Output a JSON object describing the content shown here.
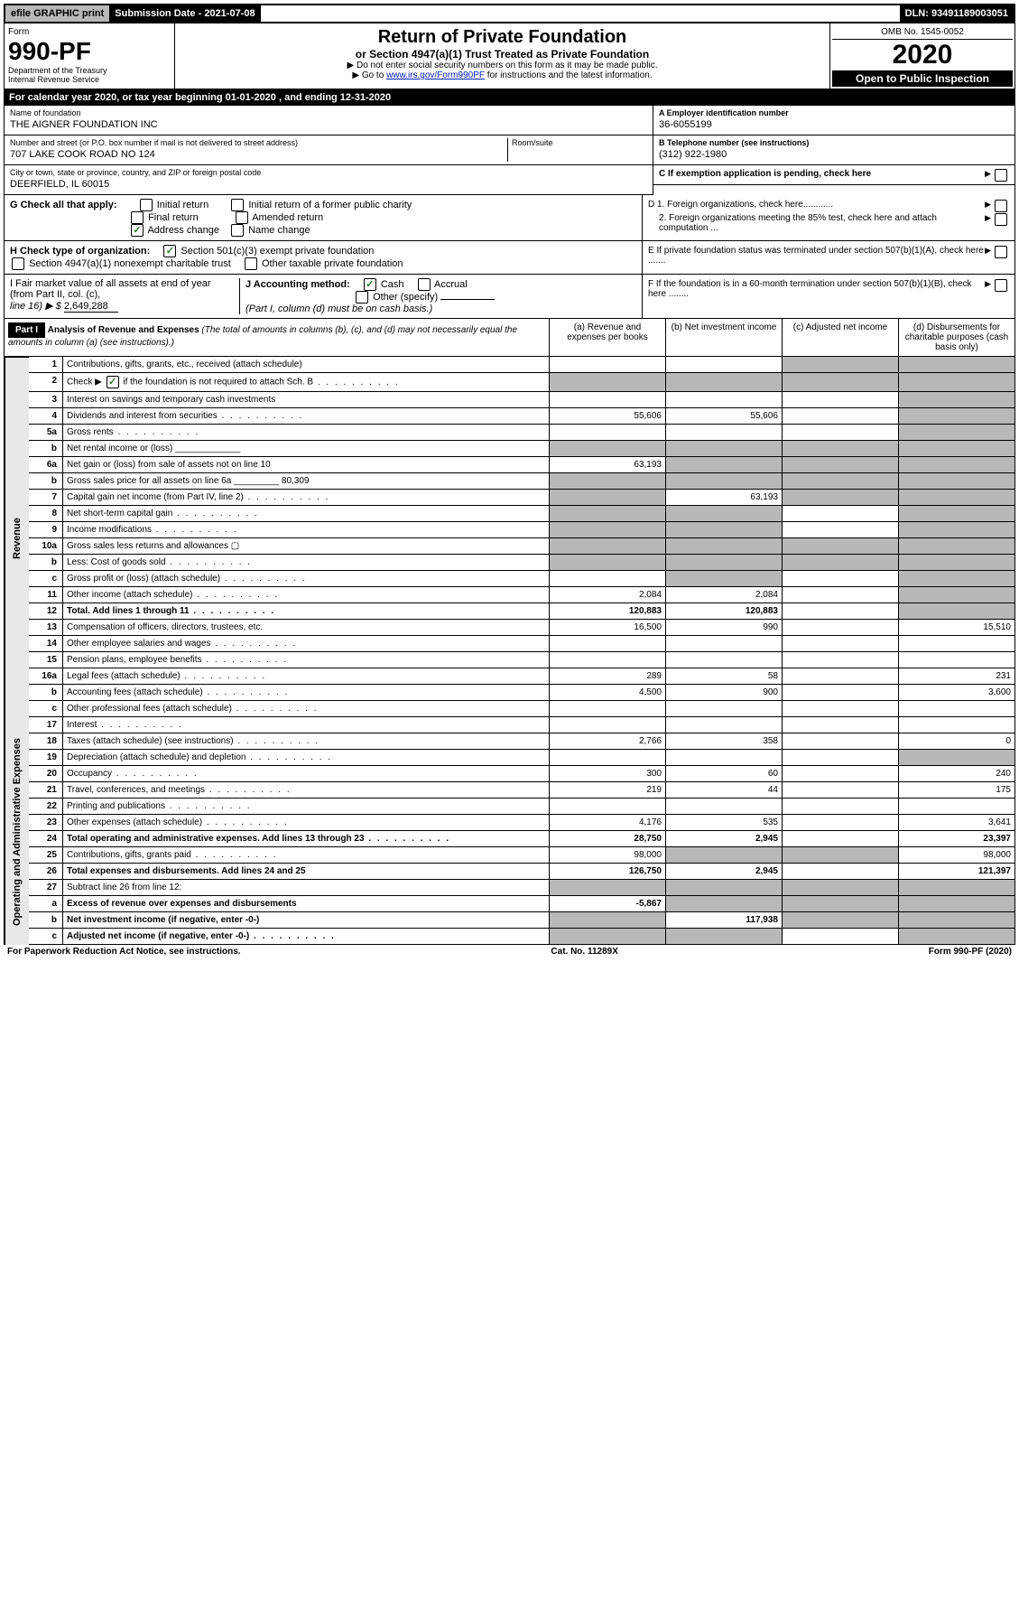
{
  "topbar": {
    "efile": "efile GRAPHIC print",
    "submission": "Submission Date - 2021-07-08",
    "dln": "DLN: 93491189003051"
  },
  "header": {
    "form_label": "Form",
    "form_number": "990-PF",
    "department": "Department of the Treasury",
    "irs": "Internal Revenue Service",
    "title": "Return of Private Foundation",
    "subtitle": "or Section 4947(a)(1) Trust Treated as Private Foundation",
    "inst1": "▶ Do not enter social security numbers on this form as it may be made public.",
    "inst2_pre": "▶ Go to ",
    "inst2_link": "www.irs.gov/Form990PF",
    "inst2_post": " for instructions and the latest information.",
    "omb": "OMB No. 1545-0052",
    "year": "2020",
    "open_public": "Open to Public Inspection"
  },
  "calendar": "For calendar year 2020, or tax year beginning 01-01-2020                              , and ending 12-31-2020",
  "info": {
    "name_label": "Name of foundation",
    "name": "THE AIGNER FOUNDATION INC",
    "street_label": "Number and street (or P.O. box number if mail is not delivered to street address)",
    "street": "707 LAKE COOK ROAD NO 124",
    "room_label": "Room/suite",
    "city_label": "City or town, state or province, country, and ZIP or foreign postal code",
    "city": "DEERFIELD, IL  60015",
    "ein_label": "A Employer identification number",
    "ein": "36-6055199",
    "phone_label": "B Telephone number (see instructions)",
    "phone": "(312) 922-1980",
    "c_label": "C If exemption application is pending, check here"
  },
  "g": {
    "label": "G Check all that apply:",
    "initial": "Initial return",
    "final": "Final return",
    "address": "Address change",
    "initial_former": "Initial return of a former public charity",
    "amended": "Amended return",
    "name_change": "Name change"
  },
  "h": {
    "label": "H Check type of organization:",
    "sec501": "Section 501(c)(3) exempt private foundation",
    "sec4947": "Section 4947(a)(1) nonexempt charitable trust",
    "other": "Other taxable private foundation"
  },
  "i": {
    "label": "I Fair market value of all assets at end of year (from Part II, col. (c),",
    "line16": "line 16) ▶ $",
    "value": "2,649,288"
  },
  "j": {
    "label": "J Accounting method:",
    "cash": "Cash",
    "accrual": "Accrual",
    "other": "Other (specify)",
    "note": "(Part I, column (d) must be on cash basis.)"
  },
  "d": {
    "d1": "D 1. Foreign organizations, check here............",
    "d2": "2. Foreign organizations meeting the 85% test, check here and attach computation ...",
    "e": "E  If private foundation status was terminated under section 507(b)(1)(A), check here .......",
    "f": "F  If the foundation is in a 60-month termination under section 507(b)(1)(B), check here ........"
  },
  "part1": {
    "title": "Part I",
    "heading": "Analysis of Revenue and Expenses",
    "heading_note": " (The total of amounts in columns (b), (c), and (d) may not necessarily equal the amounts in column (a) (see instructions).)",
    "col_a": "(a)   Revenue and expenses per books",
    "col_b": "(b)  Net investment income",
    "col_c": "(c)  Adjusted net income",
    "col_d": "(d)  Disbursements for charitable purposes (cash basis only)"
  },
  "side": {
    "revenue": "Revenue",
    "expenses": "Operating and Administrative Expenses"
  },
  "rows": [
    {
      "n": "1",
      "d": "Contributions, gifts, grants, etc., received (attach schedule)",
      "a": "",
      "b": "",
      "c": "g",
      "dd": "g"
    },
    {
      "n": "2",
      "d": "Check ▶ ☑ if the foundation is not required to attach Sch. B",
      "dots": true,
      "a": "g",
      "b": "g",
      "c": "g",
      "dd": "g"
    },
    {
      "n": "3",
      "d": "Interest on savings and temporary cash investments",
      "a": "",
      "b": "",
      "c": "",
      "dd": "g"
    },
    {
      "n": "4",
      "d": "Dividends and interest from securities",
      "dots": true,
      "a": "55,606",
      "b": "55,606",
      "c": "",
      "dd": "g"
    },
    {
      "n": "5a",
      "d": "Gross rents",
      "dots": true,
      "a": "",
      "b": "",
      "c": "",
      "dd": "g"
    },
    {
      "n": "b",
      "d": "Net rental income or (loss)  _____________",
      "a": "g",
      "b": "g",
      "c": "g",
      "dd": "g"
    },
    {
      "n": "6a",
      "d": "Net gain or (loss) from sale of assets not on line 10",
      "a": "63,193",
      "b": "g",
      "c": "g",
      "dd": "g"
    },
    {
      "n": "b",
      "d": "Gross sales price for all assets on line 6a _________ 80,309",
      "a": "g",
      "b": "g",
      "c": "g",
      "dd": "g"
    },
    {
      "n": "7",
      "d": "Capital gain net income (from Part IV, line 2)",
      "dots": true,
      "a": "g",
      "b": "63,193",
      "c": "g",
      "dd": "g"
    },
    {
      "n": "8",
      "d": "Net short-term capital gain",
      "dots": true,
      "a": "g",
      "b": "g",
      "c": "",
      "dd": "g"
    },
    {
      "n": "9",
      "d": "Income modifications",
      "dots": true,
      "a": "g",
      "b": "g",
      "c": "",
      "dd": "g"
    },
    {
      "n": "10a",
      "d": "Gross sales less returns and allowances  ▢",
      "a": "g",
      "b": "g",
      "c": "g",
      "dd": "g"
    },
    {
      "n": "b",
      "d": "Less: Cost of goods sold",
      "dots": true,
      "a": "g",
      "b": "g",
      "c": "g",
      "dd": "g"
    },
    {
      "n": "c",
      "d": "Gross profit or (loss) (attach schedule)",
      "dots": true,
      "a": "",
      "b": "g",
      "c": "",
      "dd": "g"
    },
    {
      "n": "11",
      "d": "Other income (attach schedule)",
      "dots": true,
      "a": "2,084",
      "b": "2,084",
      "c": "",
      "dd": "g"
    },
    {
      "n": "12",
      "d": "Total. Add lines 1 through 11",
      "dots": true,
      "bold": true,
      "a": "120,883",
      "b": "120,883",
      "c": "",
      "dd": "g"
    },
    {
      "n": "13",
      "d": "Compensation of officers, directors, trustees, etc.",
      "a": "16,500",
      "b": "990",
      "c": "",
      "dd": "15,510"
    },
    {
      "n": "14",
      "d": "Other employee salaries and wages",
      "dots": true,
      "a": "",
      "b": "",
      "c": "",
      "dd": ""
    },
    {
      "n": "15",
      "d": "Pension plans, employee benefits",
      "dots": true,
      "a": "",
      "b": "",
      "c": "",
      "dd": ""
    },
    {
      "n": "16a",
      "d": "Legal fees (attach schedule)",
      "dots": true,
      "a": "289",
      "b": "58",
      "c": "",
      "dd": "231"
    },
    {
      "n": "b",
      "d": "Accounting fees (attach schedule)",
      "dots": true,
      "a": "4,500",
      "b": "900",
      "c": "",
      "dd": "3,600"
    },
    {
      "n": "c",
      "d": "Other professional fees (attach schedule)",
      "dots": true,
      "a": "",
      "b": "",
      "c": "",
      "dd": ""
    },
    {
      "n": "17",
      "d": "Interest",
      "dots": true,
      "a": "",
      "b": "",
      "c": "",
      "dd": ""
    },
    {
      "n": "18",
      "d": "Taxes (attach schedule) (see instructions)",
      "dots": true,
      "a": "2,766",
      "b": "358",
      "c": "",
      "dd": "0"
    },
    {
      "n": "19",
      "d": "Depreciation (attach schedule) and depletion",
      "dots": true,
      "a": "",
      "b": "",
      "c": "",
      "dd": "g"
    },
    {
      "n": "20",
      "d": "Occupancy",
      "dots": true,
      "a": "300",
      "b": "60",
      "c": "",
      "dd": "240"
    },
    {
      "n": "21",
      "d": "Travel, conferences, and meetings",
      "dots": true,
      "a": "219",
      "b": "44",
      "c": "",
      "dd": "175"
    },
    {
      "n": "22",
      "d": "Printing and publications",
      "dots": true,
      "a": "",
      "b": "",
      "c": "",
      "dd": ""
    },
    {
      "n": "23",
      "d": "Other expenses (attach schedule)",
      "dots": true,
      "a": "4,176",
      "b": "535",
      "c": "",
      "dd": "3,641"
    },
    {
      "n": "24",
      "d": "Total operating and administrative expenses. Add lines 13 through 23",
      "dots": true,
      "bold": true,
      "a": "28,750",
      "b": "2,945",
      "c": "",
      "dd": "23,397"
    },
    {
      "n": "25",
      "d": "Contributions, gifts, grants paid",
      "dots": true,
      "a": "98,000",
      "b": "g",
      "c": "g",
      "dd": "98,000"
    },
    {
      "n": "26",
      "d": "Total expenses and disbursements. Add lines 24 and 25",
      "bold": true,
      "a": "126,750",
      "b": "2,945",
      "c": "",
      "dd": "121,397"
    },
    {
      "n": "27",
      "d": "Subtract line 26 from line 12:",
      "a": "g",
      "b": "g",
      "c": "g",
      "dd": "g"
    },
    {
      "n": "a",
      "d": "Excess of revenue over expenses and disbursements",
      "bold": true,
      "a": "-5,867",
      "b": "g",
      "c": "g",
      "dd": "g"
    },
    {
      "n": "b",
      "d": "Net investment income (if negative, enter -0-)",
      "bold": true,
      "a": "g",
      "b": "117,938",
      "c": "g",
      "dd": "g"
    },
    {
      "n": "c",
      "d": "Adjusted net income (if negative, enter -0-)",
      "dots": true,
      "bold": true,
      "a": "g",
      "b": "g",
      "c": "",
      "dd": "g"
    }
  ],
  "footer": {
    "left": "For Paperwork Reduction Act Notice, see instructions.",
    "center": "Cat. No. 11289X",
    "right": "Form 990-PF (2020)"
  }
}
